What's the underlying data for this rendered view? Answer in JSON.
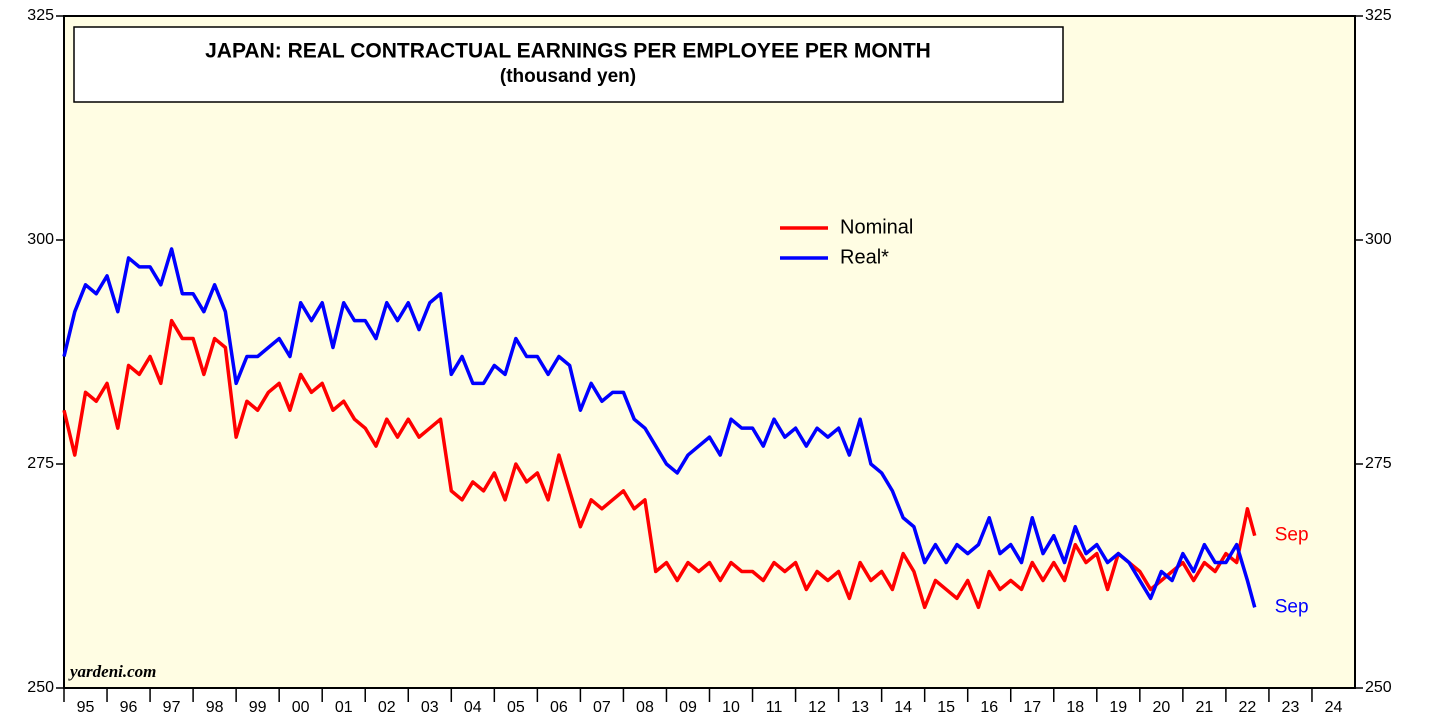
{
  "chart_data": {
    "type": "line",
    "title": "JAPAN: REAL CONTRACTUAL EARNINGS PER EMPLOYEE PER MONTH",
    "subtitle": "(thousand yen)",
    "annotations": [
      "yardeni.com",
      "Sep",
      "Sep"
    ],
    "x": [
      1995,
      1995.25,
      1995.5,
      1995.75,
      1996,
      1996.25,
      1996.5,
      1996.75,
      1997,
      1997.25,
      1997.5,
      1997.75,
      1998,
      1998.25,
      1998.5,
      1998.75,
      1999,
      1999.25,
      1999.5,
      1999.75,
      2000,
      2000.25,
      2000.5,
      2000.75,
      2001,
      2001.25,
      2001.5,
      2001.75,
      2002,
      2002.25,
      2002.5,
      2002.75,
      2003,
      2003.25,
      2003.5,
      2003.75,
      2004,
      2004.25,
      2004.5,
      2004.75,
      2005,
      2005.25,
      2005.5,
      2005.75,
      2006,
      2006.25,
      2006.5,
      2006.75,
      2007,
      2007.25,
      2007.5,
      2007.75,
      2008,
      2008.25,
      2008.5,
      2008.75,
      2009,
      2009.25,
      2009.5,
      2009.75,
      2010,
      2010.25,
      2010.5,
      2010.75,
      2011,
      2011.25,
      2011.5,
      2011.75,
      2012,
      2012.25,
      2012.5,
      2012.75,
      2013,
      2013.25,
      2013.5,
      2013.75,
      2014,
      2014.25,
      2014.5,
      2014.75,
      2015,
      2015.25,
      2015.5,
      2015.75,
      2016,
      2016.25,
      2016.5,
      2016.75,
      2017,
      2017.25,
      2017.5,
      2017.75,
      2018,
      2018.25,
      2018.5,
      2018.75,
      2019,
      2019.25,
      2019.5,
      2019.75,
      2020,
      2020.25,
      2020.5,
      2020.75,
      2021,
      2021.25,
      2021.5,
      2021.75,
      2022,
      2022.25,
      2022.5,
      2022.67
    ],
    "series": [
      {
        "name": "Nominal",
        "color": "#ff0000",
        "values": [
          281,
          276,
          283,
          282,
          284,
          279,
          286,
          285,
          287,
          284,
          291,
          289,
          289,
          285,
          289,
          288,
          278,
          282,
          281,
          283,
          284,
          281,
          285,
          283,
          284,
          281,
          282,
          280,
          279,
          277,
          280,
          278,
          280,
          278,
          279,
          280,
          272,
          271,
          273,
          272,
          274,
          271,
          275,
          273,
          274,
          271,
          276,
          272,
          268,
          271,
          270,
          271,
          272,
          270,
          271,
          263,
          264,
          262,
          264,
          263,
          264,
          262,
          264,
          263,
          263,
          262,
          264,
          263,
          264,
          261,
          263,
          262,
          263,
          260,
          264,
          262,
          263,
          261,
          265,
          263,
          259,
          262,
          261,
          260,
          262,
          259,
          263,
          261,
          262,
          261,
          264,
          262,
          264,
          262,
          266,
          264,
          265,
          261,
          265,
          264,
          263,
          261,
          262,
          263,
          264,
          262,
          264,
          263,
          265,
          264,
          270,
          267
        ]
      },
      {
        "name": "Real*",
        "color": "#0000ff",
        "values": [
          287,
          292,
          295,
          294,
          296,
          292,
          298,
          297,
          297,
          295,
          299,
          294,
          294,
          292,
          295,
          292,
          284,
          287,
          287,
          288,
          289,
          287,
          293,
          291,
          293,
          288,
          293,
          291,
          291,
          289,
          293,
          291,
          293,
          290,
          293,
          294,
          285,
          287,
          284,
          284,
          286,
          285,
          289,
          287,
          287,
          285,
          287,
          286,
          281,
          284,
          282,
          283,
          283,
          280,
          279,
          277,
          275,
          274,
          276,
          277,
          278,
          276,
          280,
          279,
          279,
          277,
          280,
          278,
          279,
          277,
          279,
          278,
          279,
          276,
          280,
          275,
          274,
          272,
          269,
          268,
          264,
          266,
          264,
          266,
          265,
          266,
          269,
          265,
          266,
          264,
          269,
          265,
          267,
          264,
          268,
          265,
          266,
          264,
          265,
          264,
          262,
          260,
          263,
          262,
          265,
          263,
          266,
          264,
          264,
          266,
          262,
          259
        ]
      }
    ],
    "xlim": [
      1995,
      2025
    ],
    "xticks": [
      {
        "value": 1995.5,
        "label": "95"
      },
      {
        "value": 1996.5,
        "label": "96"
      },
      {
        "value": 1997.5,
        "label": "97"
      },
      {
        "value": 1998.5,
        "label": "98"
      },
      {
        "value": 1999.5,
        "label": "99"
      },
      {
        "value": 2000.5,
        "label": "00"
      },
      {
        "value": 2001.5,
        "label": "01"
      },
      {
        "value": 2002.5,
        "label": "02"
      },
      {
        "value": 2003.5,
        "label": "03"
      },
      {
        "value": 2004.5,
        "label": "04"
      },
      {
        "value": 2005.5,
        "label": "05"
      },
      {
        "value": 2006.5,
        "label": "06"
      },
      {
        "value": 2007.5,
        "label": "07"
      },
      {
        "value": 2008.5,
        "label": "08"
      },
      {
        "value": 2009.5,
        "label": "09"
      },
      {
        "value": 2010.5,
        "label": "10"
      },
      {
        "value": 2011.5,
        "label": "11"
      },
      {
        "value": 2012.5,
        "label": "12"
      },
      {
        "value": 2013.5,
        "label": "13"
      },
      {
        "value": 2014.5,
        "label": "14"
      },
      {
        "value": 2015.5,
        "label": "15"
      },
      {
        "value": 2016.5,
        "label": "16"
      },
      {
        "value": 2017.5,
        "label": "17"
      },
      {
        "value": 2018.5,
        "label": "18"
      },
      {
        "value": 2019.5,
        "label": "19"
      },
      {
        "value": 2020.5,
        "label": "20"
      },
      {
        "value": 2021.5,
        "label": "21"
      },
      {
        "value": 2022.5,
        "label": "22"
      },
      {
        "value": 2023.5,
        "label": "23"
      },
      {
        "value": 2024.5,
        "label": "24"
      }
    ],
    "ylim": [
      250,
      325
    ],
    "yticks": [
      250,
      275,
      300,
      325
    ]
  }
}
